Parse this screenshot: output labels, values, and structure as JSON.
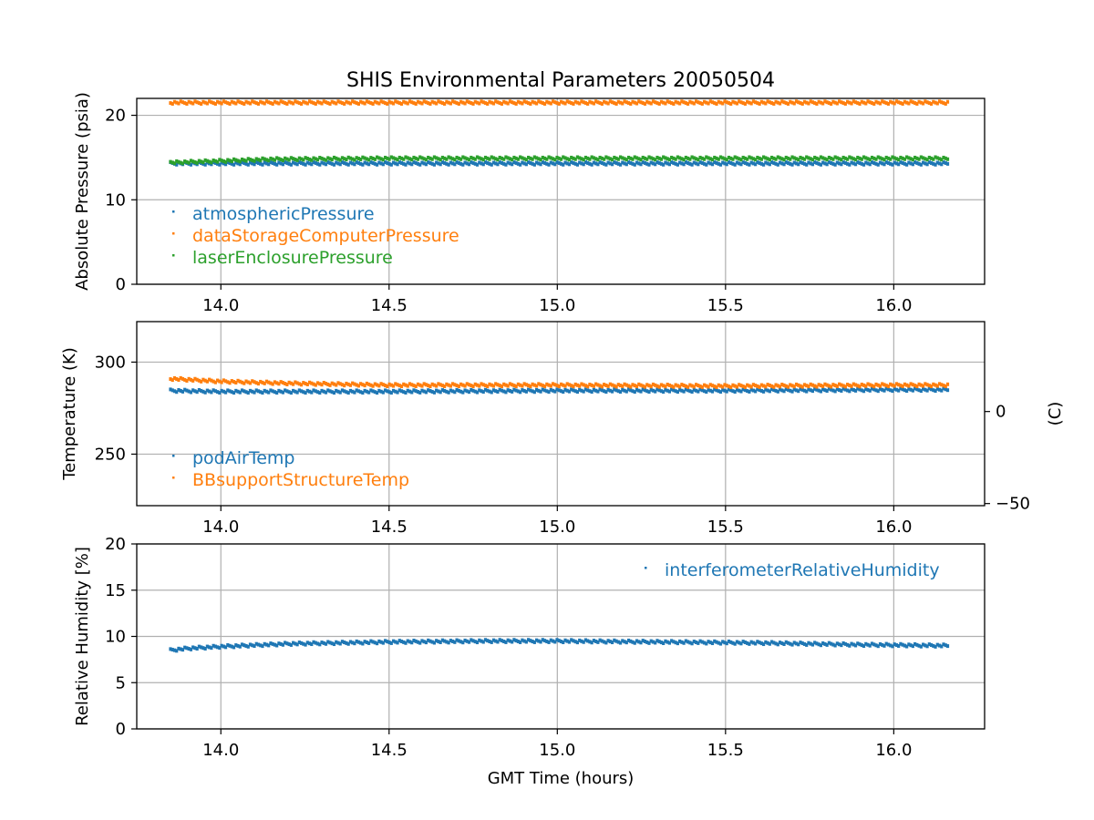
{
  "chart_data": {
    "type": "scatter",
    "title": "SHIS Environmental Parameters 20050504",
    "xlabel": "GMT Time (hours)",
    "xlim": [
      13.75,
      16.27
    ],
    "xticks": [
      "14.0",
      "14.5",
      "15.0",
      "15.5",
      "16.0"
    ],
    "xtick_values": [
      14.0,
      14.5,
      15.0,
      15.5,
      16.0
    ],
    "data_x_range": [
      13.85,
      16.16
    ],
    "panels": [
      {
        "ylabel": "Absolute Pressure (psia)",
        "ylim": [
          0,
          22
        ],
        "yticks": [
          "0",
          "10",
          "20"
        ],
        "ytick_values": [
          0,
          10,
          20
        ],
        "legend_position": "lower-left",
        "series": [
          {
            "name": "atmosphericPressure",
            "color": "#1f77b4",
            "x": [
              13.85,
              14.0,
              14.5,
              15.0,
              15.5,
              16.0,
              16.16
            ],
            "values": [
              14.3,
              14.3,
              14.3,
              14.3,
              14.3,
              14.3,
              14.3
            ]
          },
          {
            "name": "dataStorageComputerPressure",
            "color": "#ff7f0e",
            "x": [
              13.85,
              14.0,
              14.5,
              15.0,
              15.5,
              16.0,
              16.16
            ],
            "values": [
              21.5,
              21.5,
              21.5,
              21.5,
              21.5,
              21.5,
              21.5
            ]
          },
          {
            "name": "laserEnclosurePressure",
            "color": "#2ca02c",
            "x": [
              13.85,
              14.0,
              14.15,
              14.5,
              15.0,
              15.5,
              16.0,
              16.16
            ],
            "values": [
              14.4,
              14.6,
              14.8,
              14.9,
              14.9,
              14.9,
              14.9,
              14.9
            ]
          }
        ]
      },
      {
        "ylabel": "Temperature (K)",
        "ylim": [
          222,
          322
        ],
        "yticks": [
          "250",
          "300"
        ],
        "ytick_values": [
          250,
          300
        ],
        "secondary_ylabel": "(C)",
        "secondary_yticks": [
          "−50",
          "0"
        ],
        "secondary_ytick_values": [
          -50,
          0
        ],
        "legend_position": "lower-left",
        "series": [
          {
            "name": "podAirTemp",
            "color": "#1f77b4",
            "x": [
              13.85,
              14.0,
              14.5,
              15.0,
              15.5,
              16.0,
              16.16
            ],
            "values": [
              284.5,
              284,
              284,
              284.5,
              284.5,
              285,
              285
            ]
          },
          {
            "name": "BBsupportStructureTemp",
            "color": "#ff7f0e",
            "x": [
              13.85,
              13.95,
              14.0,
              14.2,
              14.5,
              15.0,
              15.5,
              16.0,
              16.16
            ],
            "values": [
              291,
              290,
              289.5,
              288.5,
              287.5,
              287.5,
              287,
              287.5,
              287.5
            ]
          }
        ]
      },
      {
        "ylabel": "Relative Humidity [%]",
        "ylim": [
          0,
          20
        ],
        "yticks": [
          "0",
          "5",
          "10",
          "15",
          "20"
        ],
        "ytick_values": [
          0,
          5,
          10,
          15,
          20
        ],
        "legend_position": "upper-right",
        "series": [
          {
            "name": "interferometerRelativeHumidity",
            "color": "#1f77b4",
            "x": [
              13.85,
              13.9,
              14.0,
              14.2,
              14.5,
              14.8,
              15.0,
              15.3,
              15.6,
              15.9,
              16.16
            ],
            "values": [
              8.5,
              8.7,
              8.9,
              9.2,
              9.4,
              9.5,
              9.5,
              9.4,
              9.3,
              9.1,
              9.0
            ]
          }
        ]
      }
    ]
  }
}
